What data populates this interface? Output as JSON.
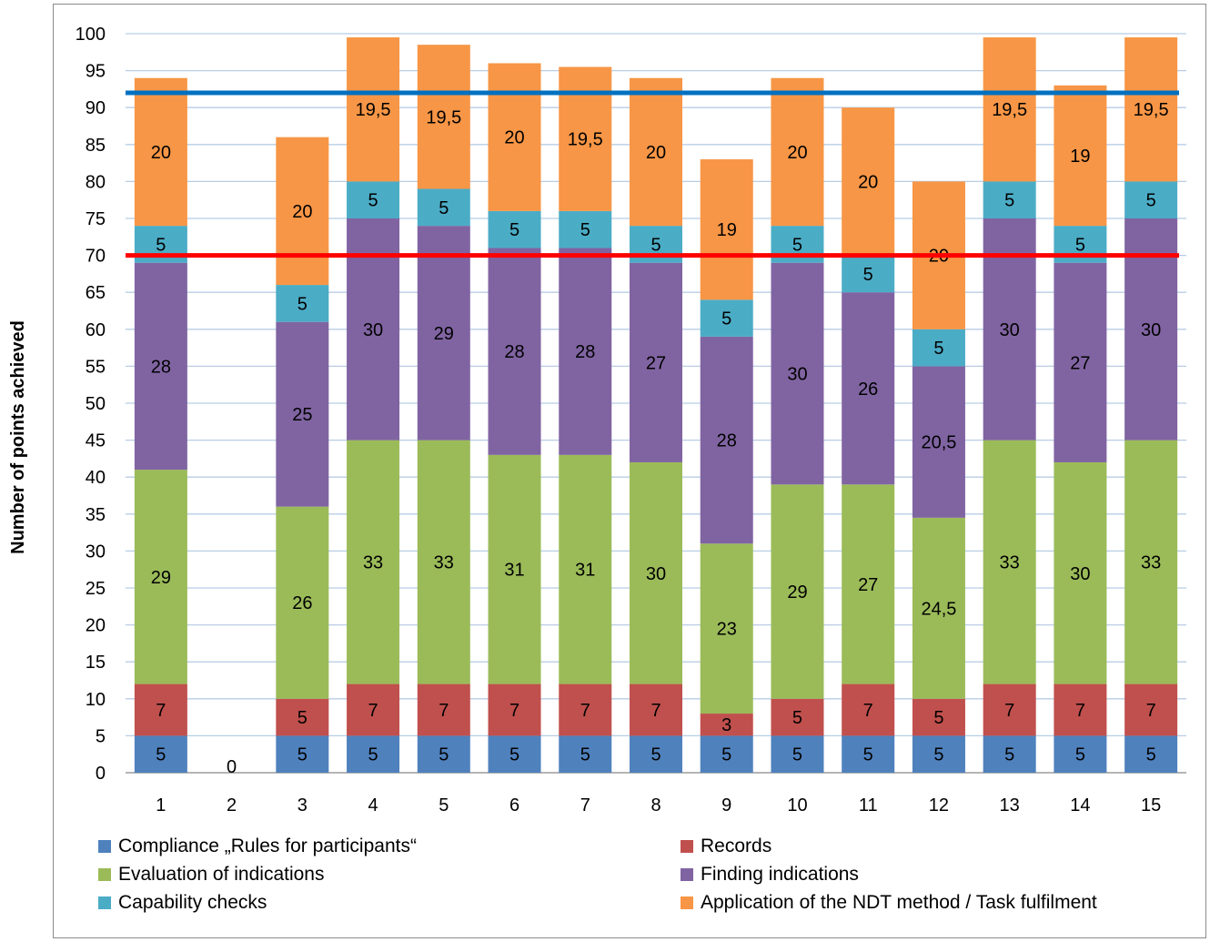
{
  "chart_data": {
    "type": "bar",
    "stacked": true,
    "title": "",
    "ylabel": "Number of points achieved",
    "xlabel": "",
    "ylim": [
      0,
      100
    ],
    "ytick_step": 5,
    "grid": true,
    "legend_position": "bottom",
    "categories": [
      "1",
      "2",
      "3",
      "4",
      "5",
      "6",
      "7",
      "8",
      "9",
      "10",
      "11",
      "12",
      "13",
      "14",
      "15"
    ],
    "series": [
      {
        "name": "Compliance „Rules for participants“",
        "color": "#4f81bd",
        "values": [
          5,
          0,
          5,
          5,
          5,
          5,
          5,
          5,
          5,
          5,
          5,
          5,
          5,
          5,
          5
        ],
        "labels": [
          "5",
          "0",
          "5",
          "5",
          "5",
          "5",
          "5",
          "5",
          "5",
          "5",
          "5",
          "5",
          "5",
          "5",
          "5"
        ]
      },
      {
        "name": "Records",
        "color": "#c0504d",
        "values": [
          7,
          0,
          5,
          7,
          7,
          7,
          7,
          7,
          3,
          5,
          7,
          5,
          7,
          7,
          7
        ],
        "labels": [
          "7",
          "",
          "5",
          "7",
          "7",
          "7",
          "7",
          "7",
          "3",
          "5",
          "7",
          "5",
          "7",
          "7",
          "7"
        ]
      },
      {
        "name": "Evaluation of indications",
        "color": "#9bbb59",
        "values": [
          29,
          0,
          26,
          33,
          33,
          31,
          31,
          30,
          23,
          29,
          27,
          24.5,
          33,
          30,
          33
        ],
        "labels": [
          "29",
          "",
          "26",
          "33",
          "33",
          "31",
          "31",
          "30",
          "23",
          "29",
          "27",
          "24,5",
          "33",
          "30",
          "33"
        ]
      },
      {
        "name": "Finding indications",
        "color": "#8064a2",
        "values": [
          28,
          0,
          25,
          30,
          29,
          28,
          28,
          27,
          28,
          30,
          26,
          20.5,
          30,
          27,
          30
        ],
        "labels": [
          "28",
          "",
          "25",
          "30",
          "29",
          "28",
          "28",
          "27",
          "28",
          "30",
          "26",
          "20,5",
          "30",
          "27",
          "30"
        ]
      },
      {
        "name": "Capability checks",
        "color": "#4bacc6",
        "values": [
          5,
          0,
          5,
          5,
          5,
          5,
          5,
          5,
          5,
          5,
          5,
          5,
          5,
          5,
          5
        ],
        "labels": [
          "5",
          "",
          "5",
          "5",
          "5",
          "5",
          "5",
          "5",
          "5",
          "5",
          "5",
          "5",
          "5",
          "5",
          "5"
        ]
      },
      {
        "name": "Application of the NDT method / Task fulfilment",
        "color": "#f79646",
        "values": [
          20,
          0,
          20,
          19.5,
          19.5,
          20,
          19.5,
          20,
          19,
          20,
          20,
          20,
          19.5,
          19,
          19.5
        ],
        "labels": [
          "20",
          "",
          "20",
          "19,5",
          "19,5",
          "20",
          "19,5",
          "20",
          "19",
          "20",
          "20",
          "20",
          "19,5",
          "19",
          "19,5"
        ]
      }
    ],
    "reference_lines": [
      {
        "y": 92,
        "color": "#0070c0"
      },
      {
        "y": 70,
        "color": "#ff0000"
      }
    ]
  }
}
